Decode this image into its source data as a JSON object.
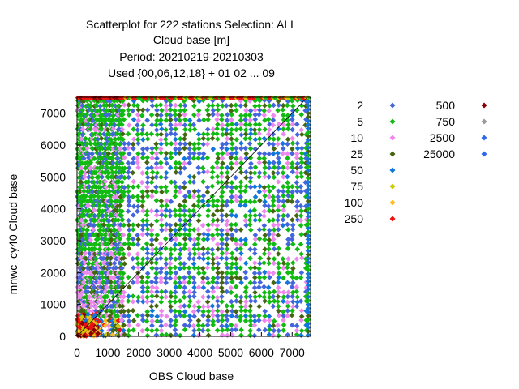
{
  "chart_data": {
    "type": "scatter",
    "title_lines": [
      "Scatterplot for  222 stations Selection: ALL",
      "Cloud base [m]",
      "Period: 20210219-20210303",
      "Used {00,06,12,18} + 01 02 ... 09"
    ],
    "xlabel": "OBS Cloud base",
    "ylabel": "mnwc_cy40 Cloud base",
    "xlim": [
      0,
      7600
    ],
    "ylim": [
      0,
      7500
    ],
    "xticks": [
      0,
      1000,
      2000,
      3000,
      4000,
      5000,
      6000,
      7000
    ],
    "yticks": [
      0,
      1000,
      2000,
      3000,
      4000,
      5000,
      6000,
      7000
    ],
    "diagonal_line": true,
    "obs_columns": [
      30,
      60,
      90,
      120,
      150,
      180,
      240,
      300,
      360,
      420,
      480,
      540,
      600,
      660,
      720,
      780,
      840,
      900,
      960,
      1020,
      1080,
      1140,
      1200,
      1260,
      1320,
      1380,
      1440,
      1500,
      1680,
      1830,
      1980,
      2130,
      2290,
      2440,
      2590,
      2740,
      2900,
      3050,
      3200,
      3350,
      3500,
      3660,
      3810,
      3960,
      4110,
      4260,
      4420,
      4570,
      4720,
      4880,
      5030,
      5180,
      5330,
      5490,
      5640,
      5790,
      5940,
      6100,
      6250,
      6400,
      6550,
      6710,
      6860,
      7010,
      7160,
      7300,
      7450
    ],
    "legend": [
      {
        "label": "2",
        "color": "#4466dd"
      },
      {
        "label": "5",
        "color": "#11bb11"
      },
      {
        "label": "10",
        "color": "#ee88ee"
      },
      {
        "label": "25",
        "color": "#446611"
      },
      {
        "label": "50",
        "color": "#1177dd"
      },
      {
        "label": "75",
        "color": "#cccc00"
      },
      {
        "label": "100",
        "color": "#ffbb22"
      },
      {
        "label": "250",
        "color": "#ee1111"
      },
      {
        "label": "500",
        "color": "#880000"
      },
      {
        "label": "750",
        "color": "#999999"
      },
      {
        "label": "2500",
        "color": "#3366ee"
      },
      {
        "label": "25000",
        "color": "#3366ee"
      }
    ]
  }
}
